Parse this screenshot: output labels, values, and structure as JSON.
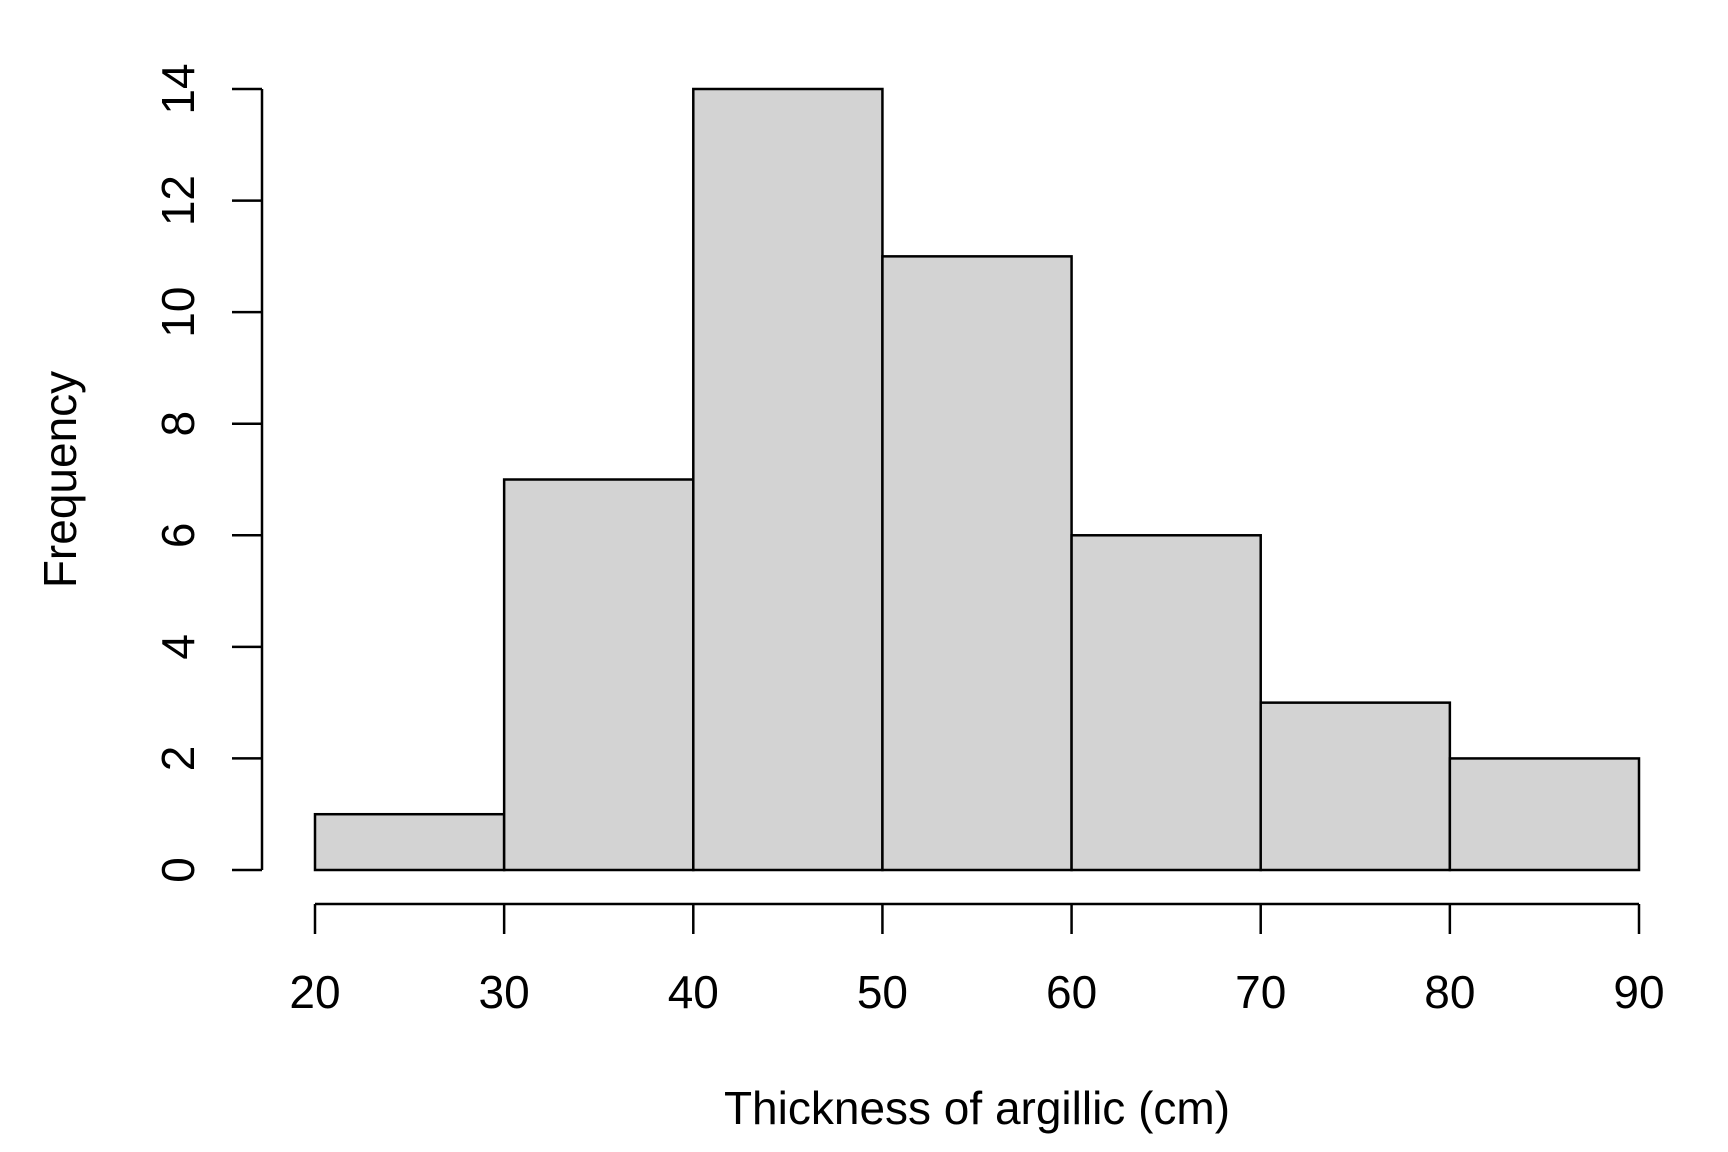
{
  "chart_data": {
    "type": "bar",
    "subtype": "histogram",
    "bins": [
      {
        "start": 20,
        "end": 30,
        "count": 1
      },
      {
        "start": 30,
        "end": 40,
        "count": 7
      },
      {
        "start": 40,
        "end": 50,
        "count": 14
      },
      {
        "start": 50,
        "end": 60,
        "count": 11
      },
      {
        "start": 60,
        "end": 70,
        "count": 6
      },
      {
        "start": 70,
        "end": 80,
        "count": 3
      },
      {
        "start": 80,
        "end": 90,
        "count": 2
      }
    ],
    "xlabel": "Thickness of argillic (cm)",
    "ylabel": "Frequency",
    "xlim": [
      20,
      90
    ],
    "ylim": [
      0,
      14
    ],
    "x_ticks": [
      20,
      30,
      40,
      50,
      60,
      70,
      80,
      90
    ],
    "y_ticks": [
      0,
      2,
      4,
      6,
      8,
      10,
      12,
      14
    ],
    "grid": false,
    "bar_color": "#d3d3d3",
    "edge_color": "#000000"
  }
}
